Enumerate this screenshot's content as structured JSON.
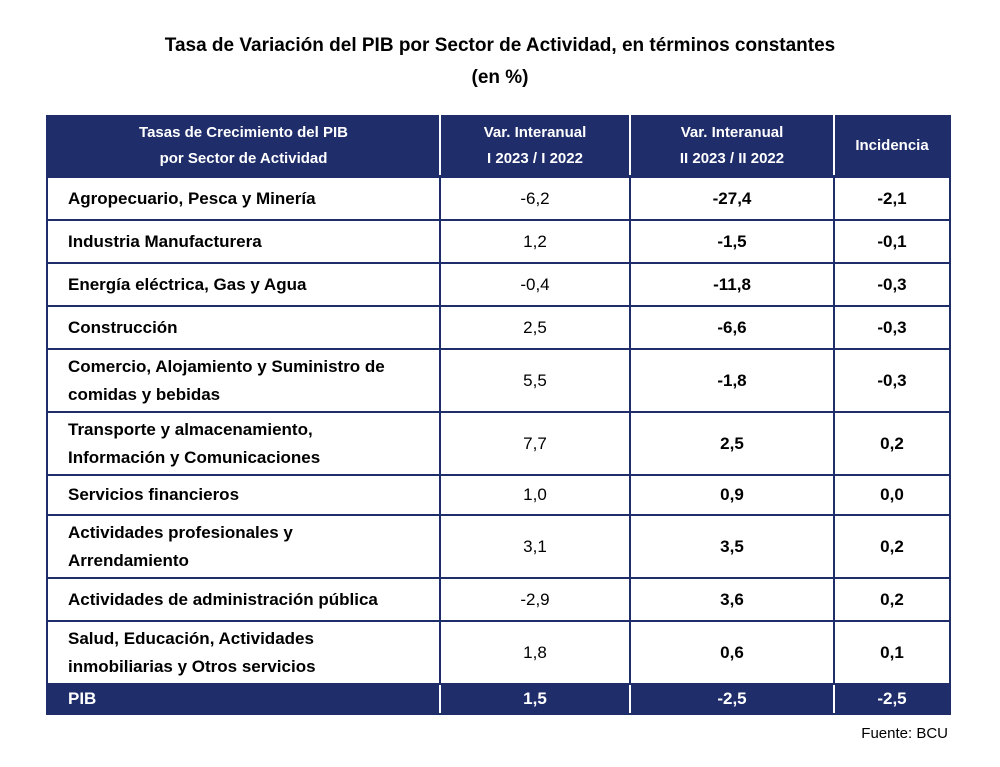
{
  "title": {
    "line1": "Tasa de Variación del PIB por Sector de Actividad, en términos constantes",
    "line2": "(en %)"
  },
  "table": {
    "headers": [
      "Tasas de Crecimiento del PIB por Sector de Actividad",
      "Var. Interanual I 2023 / I 2022",
      "Var. Interanual II 2023 / II 2022",
      "Incidencia"
    ],
    "header_lines": {
      "h1a": "Tasas de Crecimiento del PIB",
      "h1b": "por Sector de Actividad",
      "h2a": "Var. Interanual",
      "h2b": "I 2023 / I 2022",
      "h3a": "Var. Interanual",
      "h3b": "II 2023 / II 2022",
      "h4": "Incidencia"
    },
    "rows": [
      {
        "sector": "Agropecuario, Pesca y Minería",
        "var1": "-6,2",
        "var2": "-27,4",
        "inc": "-2,1"
      },
      {
        "sector": "Industria Manufacturera",
        "var1": "1,2",
        "var2": "-1,5",
        "inc": "-0,1"
      },
      {
        "sector": "Energía eléctrica, Gas y Agua",
        "var1": "-0,4",
        "var2": "-11,8",
        "inc": "-0,3"
      },
      {
        "sector": "Construcción",
        "var1": "2,5",
        "var2": "-6,6",
        "inc": "-0,3"
      },
      {
        "sector": "Comercio,  Alojamiento y Suministro de comidas y bebidas",
        "var1": "5,5",
        "var2": "-1,8",
        "inc": "-0,3"
      },
      {
        "sector": "Transporte y almacenamiento, Información y Comunicaciones",
        "var1": "7,7",
        "var2": "2,5",
        "inc": "0,2"
      },
      {
        "sector": "Servicios financieros",
        "var1": "1,0",
        "var2": "0,9",
        "inc": "0,0"
      },
      {
        "sector": "Actividades profesionales y Arrendamiento",
        "var1": "3,1",
        "var2": "3,5",
        "inc": "0,2"
      },
      {
        "sector": "Actividades de administración pública",
        "var1": "-2,9",
        "var2": "3,6",
        "inc": "0,2"
      },
      {
        "sector": "Salud, Educación, Actividades inmobiliarias y Otros servicios",
        "var1": "1,8",
        "var2": "0,6",
        "inc": "0,1"
      }
    ],
    "row_lines": {
      "r4a": "Comercio,  Alojamiento y Suministro de",
      "r4b": "comidas y bebidas",
      "r5a": "Transporte y almacenamiento,",
      "r5b": "Información y Comunicaciones",
      "r7a": "Actividades profesionales y",
      "r7b": "Arrendamiento",
      "r9a": "Salud, Educación, Actividades",
      "r9b": "inmobiliarias y Otros servicios"
    },
    "total": {
      "sector": "PIB",
      "var1": "1,5",
      "var2": "-2,5",
      "inc": "-2,5"
    }
  },
  "source": "Fuente: BCU",
  "colors": {
    "header_bg": "#1f2d6b",
    "header_text": "#ffffff",
    "border": "#1f2d6b"
  }
}
